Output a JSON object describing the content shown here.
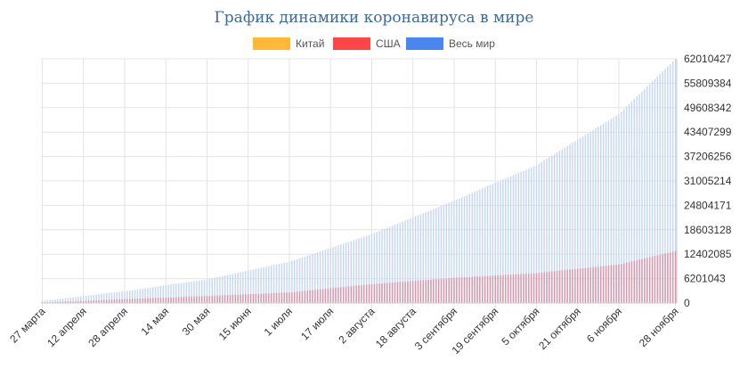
{
  "chart_data": {
    "type": "bar",
    "stacked": false,
    "title": "График динамики коронавируса в мире",
    "legend": {
      "placement": "top",
      "show": true
    },
    "grid": true,
    "x_start": "27 марта",
    "x_end": "28 ноября",
    "x_count": 247,
    "x_tick_labels": [
      "27 марта",
      "12 апреля",
      "28 апреля",
      "14 мая",
      "30 мая",
      "15 июня",
      "1 июля",
      "17 июля",
      "2 августа",
      "18 августа",
      "3 сентября",
      "19 сентября",
      "5 октября",
      "21 октября",
      "6 ноября",
      "28 ноября"
    ],
    "x_tick_indices": [
      0,
      16,
      32,
      48,
      64,
      80,
      96,
      112,
      128,
      144,
      160,
      176,
      192,
      208,
      224,
      246
    ],
    "y_axis": {
      "position": "right",
      "min": 0,
      "max": 62010427,
      "ticks": [
        0,
        6201043,
        12402085,
        18603128,
        24804171,
        31005214,
        37206256,
        43407299,
        49608342,
        55809384,
        62010427
      ]
    },
    "series": [
      {
        "name": "Китай",
        "color": "#ffb935",
        "anchor_index": [
          0,
          246
        ],
        "anchor_values": [
          81000,
          86500
        ]
      },
      {
        "name": "США",
        "color": "#ff4646",
        "anchor_index": [
          0,
          32,
          64,
          96,
          128,
          160,
          192,
          224,
          246
        ],
        "anchor_values": [
          100000,
          1000000,
          1800000,
          2700000,
          4800000,
          6400000,
          7600000,
          9800000,
          13200000
        ]
      },
      {
        "name": "Весь мир",
        "color": "#4a86f0",
        "bar_color": "#c5d7f3",
        "anchor_index": [
          0,
          32,
          64,
          96,
          128,
          160,
          192,
          224,
          246
        ],
        "anchor_values": [
          550000,
          3000000,
          6000000,
          10500000,
          17500000,
          26000000,
          35000000,
          48000000,
          62000000
        ]
      }
    ]
  }
}
